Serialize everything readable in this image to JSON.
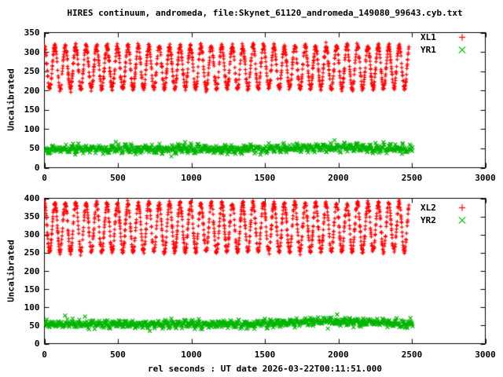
{
  "title": "HIRES continuum, andromeda, file:Skynet_61120_andromeda_149080_99643.cyb.txt",
  "xlabel": "rel seconds : UT date 2026-03-22T00:11:51.000",
  "colors": {
    "red": "#ff0000",
    "green": "#00b400",
    "axis": "#000000",
    "background": "#ffffff"
  },
  "chart_data": [
    {
      "type": "scatter",
      "panel": "top",
      "ylabel": "Uncalibrated",
      "xlim": [
        0,
        3000
      ],
      "ylim": [
        0,
        350
      ],
      "xticks": [
        0,
        500,
        1000,
        1500,
        2000,
        2500,
        3000
      ],
      "yticks": [
        0,
        50,
        100,
        150,
        200,
        250,
        300,
        350
      ],
      "grid": false,
      "legend_position": "top-right-inside",
      "legend": [
        {
          "label": "XL1",
          "marker": "plus",
          "color": "#ff0000"
        },
        {
          "label": "YR1",
          "marker": "cross",
          "color": "#00b400"
        }
      ],
      "series": [
        {
          "name": "XL1",
          "marker": "plus",
          "color": "#ff0000",
          "model": "dense periodic oscillation, points every ~2 s",
          "x_start": 0,
          "x_end": 2480,
          "step": 2,
          "period": 71,
          "center": 260,
          "amplitude": 55,
          "noise": 7,
          "observed_range": [
            205,
            315
          ],
          "seed": 11
        },
        {
          "name": "YR1",
          "marker": "cross",
          "color": "#00b400",
          "model": "flat noisy band with small ripple and mild bump near x=1950",
          "x_start": 0,
          "x_end": 2505,
          "step": 3,
          "center": 48,
          "wiggle_period": 45,
          "wiggle_amp": 5,
          "hump_center": 1950,
          "hump_width": 350,
          "hump_amp": 5,
          "noise": 9,
          "observed_range": [
            32,
            68
          ],
          "seed": 22
        }
      ]
    },
    {
      "type": "scatter",
      "panel": "bottom",
      "ylabel": "Uncalibrated",
      "xlim": [
        0,
        3000
      ],
      "ylim": [
        0,
        400
      ],
      "xticks": [
        0,
        500,
        1000,
        1500,
        2000,
        2500,
        3000
      ],
      "yticks": [
        0,
        50,
        100,
        150,
        200,
        250,
        300,
        350,
        400
      ],
      "grid": false,
      "legend_position": "top-right-inside",
      "legend": [
        {
          "label": "XL2",
          "marker": "plus",
          "color": "#ff0000"
        },
        {
          "label": "YR2",
          "marker": "cross",
          "color": "#00b400"
        }
      ],
      "series": [
        {
          "name": "XL2",
          "marker": "plus",
          "color": "#ff0000",
          "model": "dense periodic oscillation, points every ~2 s",
          "x_start": 0,
          "x_end": 2480,
          "step": 2,
          "period": 71,
          "center": 320,
          "amplitude": 67,
          "noise": 7,
          "observed_range": [
            253,
            387
          ],
          "seed": 33
        },
        {
          "name": "YR2",
          "marker": "cross",
          "color": "#00b400",
          "model": "flat noisy band with small ripple and mild bump near x=1950",
          "x_start": 0,
          "x_end": 2505,
          "step": 3,
          "center": 54,
          "wiggle_period": 45,
          "wiggle_amp": 5,
          "hump_center": 1950,
          "hump_width": 350,
          "hump_amp": 7,
          "noise": 9,
          "observed_range": [
            37,
            74
          ],
          "seed": 44
        }
      ]
    }
  ]
}
